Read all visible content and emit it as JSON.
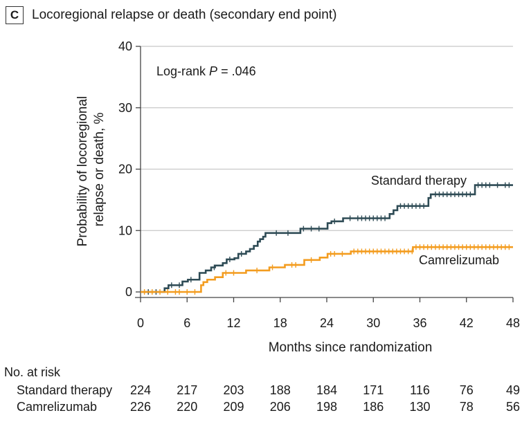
{
  "panel": {
    "letter": "C",
    "title": "Locoregional relapse or death (secondary end point)"
  },
  "colors": {
    "standard": "#2e4b55",
    "camrelizumab": "#f39c1f",
    "grid": "#c8c8c8",
    "axis": "#444444"
  },
  "chart_data": {
    "type": "line",
    "step": true,
    "xlabel": "Months since randomization",
    "ylabel_lines": [
      "Probability of locoregional",
      "relapse or death, %"
    ],
    "xlim": [
      0,
      48
    ],
    "ylim": [
      0,
      40
    ],
    "xticks": [
      0,
      6,
      12,
      18,
      24,
      30,
      36,
      42,
      48
    ],
    "yticks": [
      0,
      10,
      20,
      30,
      40
    ],
    "grid": "horizontal",
    "annotation": {
      "prefix": "Log-rank ",
      "italic": "P",
      "suffix": " = .046"
    },
    "series": [
      {
        "name": "Standard therapy",
        "color_key": "standard",
        "x": [
          0,
          3.1,
          3.6,
          5.4,
          6.1,
          7.6,
          8.4,
          9.1,
          9.6,
          10.6,
          11.1,
          12.1,
          12.6,
          13.6,
          14.1,
          14.6,
          15.1,
          15.4,
          15.8,
          16.1,
          16.6,
          17.1,
          18.1,
          20.6,
          24.1,
          24.6,
          26.1,
          32.1,
          32.6,
          33.1,
          37.1,
          37.4,
          43.1,
          48
        ],
        "y": [
          0,
          0.6,
          1.1,
          1.7,
          2.0,
          3.1,
          3.5,
          4.0,
          4.3,
          4.7,
          5.3,
          5.5,
          6.2,
          6.6,
          7.0,
          7.5,
          8.2,
          8.6,
          9.0,
          9.6,
          9.6,
          9.6,
          9.6,
          10.3,
          11.2,
          11.5,
          12.0,
          12.7,
          13.3,
          14.0,
          15.3,
          15.9,
          17.4,
          17.4
        ],
        "censor_x": [
          1,
          2,
          4,
          5,
          6.5,
          9.5,
          11.5,
          13,
          17.5,
          19,
          21,
          22,
          23,
          25,
          27,
          28,
          28.5,
          29,
          29.5,
          30,
          30.5,
          31,
          31.5,
          33.5,
          34,
          34.5,
          35,
          35.5,
          36,
          36.5,
          38,
          38.5,
          39,
          39.5,
          40,
          40.5,
          41,
          41.5,
          42,
          42.5,
          43.5,
          44,
          44.5,
          45,
          46,
          47,
          47.5
        ]
      },
      {
        "name": "Camrelizumab",
        "color_key": "camrelizumab",
        "x": [
          0,
          7.8,
          8.1,
          8.6,
          9.6,
          10.6,
          13.6,
          16.6,
          18.6,
          21.1,
          23.1,
          24.1,
          27.1,
          35.1,
          48
        ],
        "y": [
          0,
          1.1,
          1.6,
          2.0,
          2.4,
          3.1,
          3.5,
          4.0,
          4.4,
          5.2,
          5.6,
          6.2,
          6.6,
          7.3,
          7.3
        ],
        "censor_x": [
          0.5,
          1.5,
          2.5,
          3.5,
          4.5,
          5,
          6,
          7,
          11,
          12,
          15,
          17,
          19.5,
          20,
          22,
          24.5,
          25,
          26,
          27.5,
          28,
          28.5,
          29,
          29.5,
          30,
          30.5,
          31,
          31.5,
          32,
          32.5,
          33,
          33.5,
          34,
          34.5,
          35,
          35.5,
          36,
          36.5,
          37,
          37.5,
          38,
          38.5,
          39,
          39.5,
          40,
          40.5,
          41,
          41.5,
          42,
          42.5,
          43,
          43.5,
          44,
          44.5,
          45,
          45.5,
          46,
          46.5,
          47,
          47.5
        ]
      }
    ]
  },
  "risk_table": {
    "heading": "No. at risk",
    "rows": [
      {
        "label": "Standard therapy",
        "values": [
          "224",
          "217",
          "203",
          "188",
          "184",
          "171",
          "116",
          "76",
          "49"
        ]
      },
      {
        "label": "Camrelizumab",
        "values": [
          "226",
          "220",
          "209",
          "206",
          "198",
          "186",
          "130",
          "78",
          "56"
        ]
      }
    ]
  }
}
